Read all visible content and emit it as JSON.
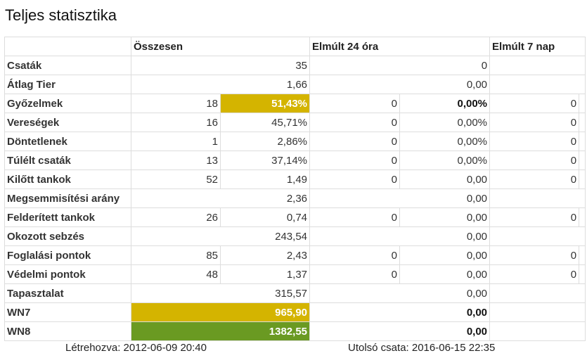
{
  "title": "Teljes statisztika",
  "headers": [
    "Összesen",
    "Elmúlt 24 óra",
    "Elmúlt 7 nap"
  ],
  "rows": [
    {
      "label": "Csaták",
      "o": [
        "35"
      ],
      "d": [
        "0"
      ],
      "w": [
        ""
      ]
    },
    {
      "label": "Átlag Tier",
      "o": [
        "1,66"
      ],
      "d": [
        "0,00"
      ],
      "w": [
        ""
      ]
    },
    {
      "label": "Győzelmek",
      "o": [
        "18",
        "51,43%"
      ],
      "d": [
        "0",
        "0,00%"
      ],
      "w": [
        "0",
        ""
      ]
    },
    {
      "label": "Vereségek",
      "o": [
        "16",
        "45,71%"
      ],
      "d": [
        "0",
        "0,00%"
      ],
      "w": [
        "0",
        ""
      ]
    },
    {
      "label": "Döntetlenek",
      "o": [
        "1",
        "2,86%"
      ],
      "d": [
        "0",
        "0,00%"
      ],
      "w": [
        "0",
        ""
      ]
    },
    {
      "label": "Túlélt csaták",
      "o": [
        "13",
        "37,14%"
      ],
      "d": [
        "0",
        "0,00%"
      ],
      "w": [
        "0",
        ""
      ]
    },
    {
      "label": "Kilőtt tankok",
      "o": [
        "52",
        "1,49"
      ],
      "d": [
        "0",
        "0,00"
      ],
      "w": [
        "0",
        ""
      ]
    },
    {
      "label": "Megsemmisítési arány",
      "o": [
        "2,36"
      ],
      "d": [
        "0,00"
      ],
      "w": [
        ""
      ]
    },
    {
      "label": "Felderített tankok",
      "o": [
        "26",
        "0,74"
      ],
      "d": [
        "0",
        "0,00"
      ],
      "w": [
        "0",
        ""
      ]
    },
    {
      "label": "Okozott sebzés",
      "o": [
        "243,54"
      ],
      "d": [
        "0,00"
      ],
      "w": [
        ""
      ]
    },
    {
      "label": "Foglalási pontok",
      "o": [
        "85",
        "2,43"
      ],
      "d": [
        "0",
        "0,00"
      ],
      "w": [
        "0",
        ""
      ]
    },
    {
      "label": "Védelmi pontok",
      "o": [
        "48",
        "1,37"
      ],
      "d": [
        "0",
        "0,00"
      ],
      "w": [
        "0",
        ""
      ]
    },
    {
      "label": "Tapasztalat",
      "o": [
        "315,57"
      ],
      "d": [
        "0,00"
      ],
      "w": [
        ""
      ]
    },
    {
      "label": "WN7",
      "o": [
        "965,90"
      ],
      "d": [
        "0,00"
      ],
      "w": [
        ""
      ],
      "hl": "yel"
    },
    {
      "label": "WN8",
      "o": [
        "1382,55"
      ],
      "d": [
        "0,00"
      ],
      "w": [
        ""
      ],
      "hl": "grn"
    }
  ],
  "colors": {
    "yellow": "#d4b400",
    "green": "#6a9a22"
  },
  "footer": {
    "created": "Létrehozva: 2012-06-09 20:40",
    "last_battle": "Utolsó csata: 2016-06-15 22:35"
  }
}
